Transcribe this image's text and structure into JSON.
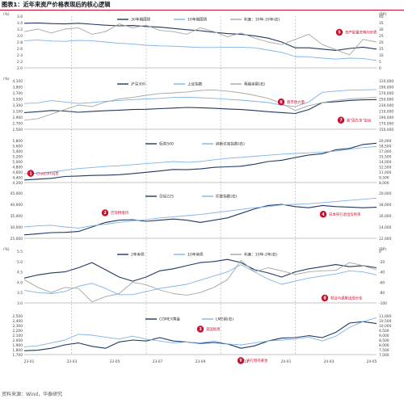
{
  "page": {
    "title": "图表1：近年来资产价格表现后的核心逻辑",
    "source": "资料来源：Wind，华泰研究",
    "colors": {
      "dark": "#1f3864",
      "light": "#7fb3e6",
      "gray": "#a6a6a6",
      "red": "#c8102e",
      "grid": "#d9d9d9"
    }
  },
  "chart_data": [
    {
      "type": "line",
      "left_unit": "(%)",
      "right_unit": "(BP)",
      "left_ticks": [
        "3.6",
        "3.4",
        "3.2",
        "3.0",
        "2.8",
        "2.6",
        "2.4",
        "2.2",
        "2.0"
      ],
      "right_ticks": [
        "40",
        "35",
        "30",
        "25",
        "20",
        "15",
        "10",
        "5",
        "0"
      ],
      "legend": [
        "30年期国债",
        "10年期国债",
        "利差：30年-10年(右)"
      ],
      "series": [
        {
          "name": "30年期国债",
          "axis": "left",
          "color": "dark",
          "values": [
            3.38,
            3.39,
            3.37,
            3.36,
            3.38,
            3.35,
            3.32,
            3.3,
            3.31,
            3.28,
            3.26,
            3.22,
            3.18,
            3.15,
            3.1,
            3.06,
            3.04,
            2.99,
            2.92,
            2.8,
            2.62,
            2.62,
            2.58,
            2.54,
            2.6,
            2.64,
            2.58
          ]
        },
        {
          "name": "10年期国债",
          "axis": "left",
          "color": "light",
          "values": [
            2.84,
            2.86,
            2.83,
            2.82,
            2.85,
            2.84,
            2.8,
            2.76,
            2.74,
            2.7,
            2.68,
            2.67,
            2.65,
            2.63,
            2.63,
            2.64,
            2.64,
            2.62,
            2.55,
            2.48,
            2.35,
            2.34,
            2.3,
            2.27,
            2.3,
            2.29,
            2.23
          ]
        },
        {
          "name": "利差：30年-10年(右)",
          "axis": "right",
          "color": "gray",
          "values": [
            28,
            30,
            27,
            30,
            31,
            26,
            28,
            34,
            31,
            33,
            29,
            28,
            26,
            31,
            28,
            24,
            27,
            23,
            20,
            18,
            22,
            26,
            18,
            14,
            10,
            22,
            20
          ]
        }
      ],
      "annotations": [
        {
          "num": "5",
          "text": "资产配置荒转向长债"
        }
      ]
    },
    {
      "type": "line",
      "left_unit": "(%)",
      "left_ticks": [
        "4,100",
        "3,900",
        "3,700",
        "3,500",
        "3,300",
        "3,100",
        "2,900",
        "2,700",
        "2,500"
      ],
      "right_ticks": [
        "310,000",
        "290,000",
        "270,000",
        "250,000",
        "230,000",
        "210,000",
        "190,000",
        "170,000",
        "150,000"
      ],
      "legend": [
        "沪深300",
        "上证指数",
        "两融余额(右)"
      ],
      "series": [
        {
          "name": "沪深300",
          "axis": "left",
          "color": "dark",
          "values": [
            3050,
            3080,
            3120,
            3100,
            3060,
            3090,
            3110,
            3130,
            3150,
            3160,
            3180,
            3200,
            3220,
            3210,
            3190,
            3170,
            3150,
            3120,
            3080,
            3050,
            3020,
            3150,
            3380,
            3410,
            3450,
            3470,
            3480
          ]
        },
        {
          "name": "上证指数",
          "axis": "left",
          "color": "light",
          "values": [
            3350,
            3370,
            3450,
            3400,
            3350,
            3380,
            3420,
            3450,
            3480,
            3500,
            3520,
            3550,
            3560,
            3540,
            3520,
            3490,
            3460,
            3420,
            3380,
            3300,
            3250,
            3400,
            3720,
            3760,
            3790,
            3800,
            3810
          ]
        },
        {
          "name": "两融余额(右)",
          "axis": "right",
          "color": "gray",
          "values": [
            180000,
            185000,
            200000,
            215000,
            230000,
            225000,
            240000,
            250000,
            255000,
            262000,
            268000,
            270000,
            273000,
            278000,
            280000,
            276000,
            270000,
            262000,
            252000,
            235000,
            212000,
            228000,
            238000,
            245000,
            250000,
            253000,
            256000
          ]
        }
      ],
      "annotations": [
        {
          "num": "6",
          "text": "稳市场力量"
        },
        {
          "num": "7",
          "text": "新\"国九条\"出台"
        }
      ]
    },
    {
      "type": "line",
      "left_ticks": [
        "5,800",
        "5,600",
        "5,400",
        "5,200",
        "5,000",
        "4,800",
        "4,600",
        "4,400",
        "4,200"
      ],
      "right_ticks": [
        "20,000",
        "18,500",
        "17,000",
        "15,500",
        "14,000",
        "12,500",
        "11,000",
        "9,500",
        "8,000"
      ],
      "legend": [
        "标普500",
        "纳斯达克指数(右)"
      ],
      "series": [
        {
          "name": "标普500",
          "axis": "left",
          "color": "dark",
          "values": [
            4300,
            4330,
            4360,
            4430,
            4450,
            4470,
            4480,
            4500,
            4540,
            4590,
            4640,
            4700,
            4690,
            4720,
            4780,
            4800,
            4820,
            4900,
            5000,
            5050,
            5150,
            5250,
            5300,
            5450,
            5500,
            5650,
            5700
          ]
        },
        {
          "name": "纳斯达克指数(右)",
          "axis": "right",
          "color": "light",
          "values": [
            10500,
            10700,
            11000,
            11500,
            12000,
            12300,
            12600,
            12800,
            13100,
            13400,
            13700,
            14000,
            13800,
            14000,
            14500,
            14900,
            15200,
            15500,
            15800,
            16100,
            16300,
            16500,
            16700,
            17000,
            17500,
            18000,
            18300
          ]
        }
      ],
      "annotations": [
        {
          "num": "1",
          "text": "ChatGPT问世"
        }
      ]
    },
    {
      "type": "line",
      "left_ticks": [
        "45,000",
        "40,000",
        "35,000",
        "30,000",
        "25,000"
      ],
      "right_ticks": [
        "20,000",
        "18,000",
        "16,000",
        "14,000",
        "12,000"
      ],
      "legend": [
        "日经225",
        "印度指数(右)"
      ],
      "series": [
        {
          "name": "日经225",
          "axis": "left",
          "color": "dark",
          "values": [
            26500,
            27000,
            27500,
            27600,
            28000,
            30000,
            32000,
            33000,
            33200,
            32500,
            33000,
            33500,
            33000,
            32000,
            33000,
            34000,
            36000,
            38000,
            39500,
            40000,
            39000,
            38500,
            39500,
            39000,
            38800,
            38500,
            38700
          ]
        },
        {
          "name": "印度指数(右)",
          "axis": "right",
          "color": "light",
          "values": [
            14000,
            14200,
            14300,
            14000,
            13800,
            14200,
            14500,
            14800,
            15100,
            15300,
            15600,
            15800,
            16000,
            16200,
            16500,
            16800,
            17100,
            17400,
            17600,
            17900,
            18000,
            18100,
            18300,
            18500,
            18700,
            18900,
            19100
          ]
        }
      ],
      "annotations": [
        {
          "num": "2",
          "text": "巴菲特增持"
        },
        {
          "num": "4",
          "text": "日本央行退出负利率"
        }
      ]
    },
    {
      "type": "line",
      "left_unit": "(%)",
      "right_unit": "(BP)",
      "left_ticks": [
        "5.5",
        "5.0",
        "4.5",
        "4.0",
        "3.5",
        "3.0"
      ],
      "right_ticks": [
        "0",
        "-20",
        "-40",
        "-60",
        "-80",
        "-100"
      ],
      "legend": [
        "2年美债",
        "10年美债",
        "利差：10年-2年(右)"
      ],
      "series": [
        {
          "name": "2年美债",
          "axis": "left",
          "color": "dark",
          "values": [
            4.2,
            4.35,
            4.45,
            4.5,
            4.7,
            4.95,
            4.6,
            4.25,
            4.05,
            4.25,
            4.55,
            4.65,
            4.8,
            4.95,
            5.0,
            5.1,
            4.95,
            4.6,
            4.45,
            4.25,
            4.5,
            4.65,
            4.75,
            4.85,
            4.75,
            4.8,
            4.7
          ]
        },
        {
          "name": "10年美债",
          "axis": "left",
          "color": "light",
          "values": [
            3.6,
            3.5,
            3.45,
            3.55,
            3.8,
            3.95,
            3.7,
            3.4,
            3.4,
            3.55,
            3.7,
            3.8,
            3.9,
            4.1,
            4.3,
            4.5,
            4.85,
            4.5,
            4.15,
            3.9,
            4.05,
            4.2,
            4.3,
            4.4,
            4.55,
            4.5,
            4.35
          ]
        },
        {
          "name": "利差：10年-2年(右)",
          "axis": "right",
          "color": "gray",
          "values": [
            -55,
            -70,
            -80,
            -70,
            -72,
            -98,
            -88,
            -82,
            -60,
            -65,
            -75,
            -82,
            -85,
            -80,
            -70,
            -55,
            -18,
            -40,
            -32,
            -38,
            -45,
            -40,
            -38,
            -37,
            -22,
            -28,
            -36
          ]
        }
      ],
      "annotations": [
        {
          "num": "8",
          "text": "就业与通胀出现分化"
        }
      ]
    },
    {
      "type": "line",
      "left_ticks": [
        "2,500",
        "2,400",
        "2,300",
        "2,200",
        "2,100",
        "2,000",
        "1,900",
        "1,800",
        "1,700"
      ],
      "right_ticks": [
        "11,000",
        "10,500",
        "10,000",
        "9,500",
        "9,000",
        "8,500",
        "8,000",
        "7,500",
        "7,000"
      ],
      "legend": [
        "COMEX黄金",
        "LME铜(右)"
      ],
      "series": [
        {
          "name": "COMEX黄金",
          "axis": "left",
          "color": "dark",
          "values": [
            1780,
            1790,
            1830,
            1900,
            1940,
            1870,
            1830,
            1960,
            2000,
            1980,
            2050,
            1980,
            1960,
            1930,
            1950,
            1920,
            1830,
            1880,
            1980,
            2040,
            2050,
            2090,
            2050,
            2160,
            2350,
            2380,
            2340
          ]
        },
        {
          "name": "LME铜(右)",
          "axis": "right",
          "color": "light",
          "values": [
            7800,
            7900,
            8200,
            8500,
            9100,
            9000,
            8800,
            8600,
            8900,
            8600,
            8400,
            8200,
            8300,
            8200,
            8400,
            8100,
            8000,
            8200,
            8400,
            8500,
            8600,
            8800,
            8400,
            8900,
            9800,
            10400,
            10800
          ]
        }
      ],
      "annotations": [
        {
          "num": "3",
          "text": "美国加息"
        },
        {
          "num": "9",
          "text": "央行增持黄金"
        }
      ]
    }
  ],
  "x_axis": {
    "ticks": [
      "23-01",
      "23-03",
      "23-05",
      "23-07",
      "23-09",
      "23-11",
      "24-01",
      "24-03",
      "24-05"
    ]
  }
}
